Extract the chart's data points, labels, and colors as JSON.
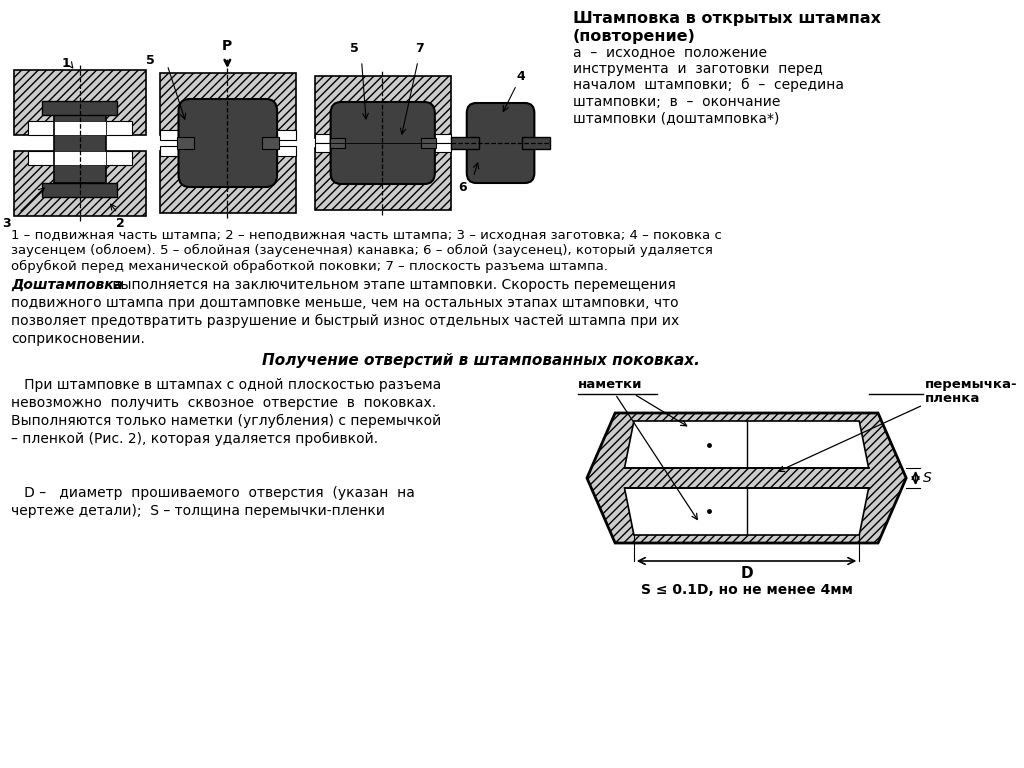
{
  "bg_color": "#ffffff",
  "hatch_color": "#cccccc",
  "dark_gray": "#404040",
  "mid_gray": "#888888",
  "title1": "Штамповка в открытых штампах",
  "title2": "(повторение)",
  "caption": "а  –  исходное  положение\nинструмента  и  заготовки  перед\nначалом  штамповки;  б  –  середина\nштамповки;  в  –  окончание\nштамповки (доштамповка*)",
  "legend1": "1 – подвижная часть штампа; 2 – неподвижная часть штампа; 3 – исходная заготовка; 4 – поковка с",
  "legend2": "заусенцем (облоем). 5 – облойная (заусенечная) канавка; 6 – облой (заусенец), который удаляется",
  "legend3": "обрубкой перед механической обработкой поковки; 7 – плоскость разъема штампа.",
  "body1a": "Доштамповка",
  "body1b": " выполняется на заключительном этапе штамповки. Скорость перемещения",
  "body1c": "подвижного штампа при доштамповке меньше, чем на остальных этапах штамповки, что",
  "body1d": "позволяет предотвратить разрушение и быстрый износ отдельных частей штампа при их",
  "body1e": "соприкосновении.",
  "sec_title": "Получение отверстий в штампованных поковках.",
  "body2": "   При штамповке в штампах с одной плоскостью разъема\nневозможно  получить  сквозное  отверстие  в  поковках.\nВыполняются только наметки (углубления) с перемычкой\n– пленкой (Рис. 2), которая удаляется пробивкой.",
  "body3a": "   D –   диаметр  прошиваемого  отверстия  (указан  на",
  "body3b": "чертеже детали);  S – толщина перемычки-пленки",
  "formula": "S ≤ 0.1D, но не менее 4мм"
}
